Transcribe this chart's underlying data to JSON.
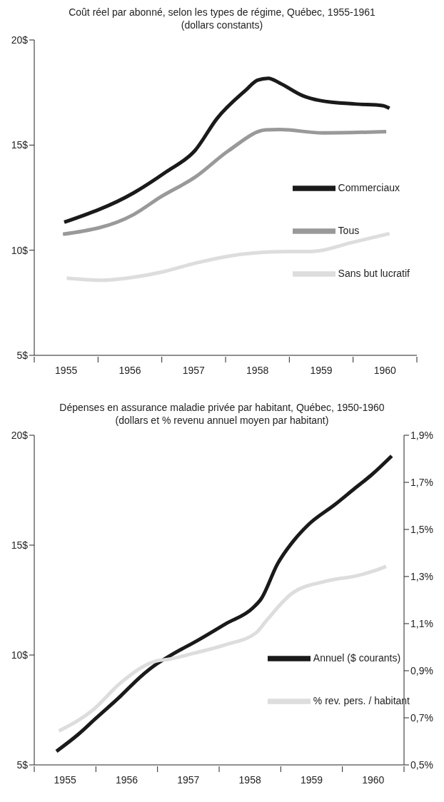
{
  "chart_data": [
    {
      "type": "line",
      "title": "Coût réel par abonné, selon les types de régime, Québec, 1955-1961",
      "subtitle": "(dollars constants)",
      "legend": "bottom right",
      "grid": false,
      "line_style": "solid",
      "marker": "none",
      "xlim": [
        1954.5,
        1960.5
      ],
      "xticks": [
        {
          "value": 1954.5,
          "label": null
        },
        {
          "value": 1955,
          "label": "1955"
        },
        {
          "value": 1955.5,
          "label": null
        },
        {
          "value": 1956,
          "label": "1956"
        },
        {
          "value": 1956.5,
          "label": null
        },
        {
          "value": 1957,
          "label": "1957"
        },
        {
          "value": 1957.5,
          "label": null
        },
        {
          "value": 1958,
          "label": "1958"
        },
        {
          "value": 1958.5,
          "label": null
        },
        {
          "value": 1959,
          "label": "1959"
        },
        {
          "value": 1959.5,
          "label": null
        },
        {
          "value": 1960,
          "label": "1960"
        },
        {
          "value": 1960.5,
          "label": null
        }
      ],
      "ylim": [
        5,
        20
      ],
      "yticks": [
        {
          "value": 5,
          "label": "5$"
        },
        {
          "value": 10,
          "label": "10$"
        },
        {
          "value": 15,
          "label": "15$"
        },
        {
          "value": 20,
          "label": "20$"
        }
      ],
      "series": [
        {
          "name": "Commerciaux",
          "color": "#1a1a1a",
          "x": [
            1954.97,
            1956.06,
            1956.57,
            1957.02,
            1957.37,
            1957.82,
            1958.0,
            1958.17,
            1958.35,
            1958.71,
            1958.98,
            1959.55,
            1959.96,
            1960.07
          ],
          "values": [
            11.33,
            12.73,
            13.73,
            14.74,
            16.28,
            17.62,
            18.09,
            18.18,
            17.95,
            17.35,
            17.12,
            16.95,
            16.88,
            16.75
          ]
        },
        {
          "name": "Tous",
          "color": "#999999",
          "x": [
            1954.95,
            1956.06,
            1956.48,
            1957.02,
            1957.55,
            1958.13,
            1958.35,
            1959.02,
            1960.02
          ],
          "values": [
            10.76,
            11.7,
            12.53,
            13.47,
            14.74,
            15.72,
            15.74,
            15.58,
            15.64
          ]
        },
        {
          "name": "Sans but lucratif",
          "color": "#dddddd",
          "x": [
            1955.01,
            1955.55,
            1956.04,
            1956.53,
            1957.02,
            1957.55,
            1958.22,
            1958.89,
            1959.47,
            1960.07
          ],
          "values": [
            8.67,
            8.57,
            8.71,
            8.98,
            9.38,
            9.72,
            9.92,
            9.95,
            10.36,
            10.79
          ]
        }
      ]
    },
    {
      "type": "line",
      "title": "Dépenses en assurance maladie privée par habitant, Québec, 1950-1960",
      "subtitle": "(dollars et % revenu annuel moyen par habitant)",
      "legend": "bottom right",
      "grid": false,
      "line_style": "solid",
      "marker": "none",
      "xlim": [
        1954.5,
        1960.5
      ],
      "xticks": [
        {
          "value": 1954.5,
          "label": null
        },
        {
          "value": 1955,
          "label": "1955"
        },
        {
          "value": 1955.5,
          "label": null
        },
        {
          "value": 1956,
          "label": "1956"
        },
        {
          "value": 1956.5,
          "label": null
        },
        {
          "value": 1957,
          "label": "1957"
        },
        {
          "value": 1957.5,
          "label": null
        },
        {
          "value": 1958,
          "label": "1958"
        },
        {
          "value": 1958.5,
          "label": null
        },
        {
          "value": 1959,
          "label": "1959"
        },
        {
          "value": 1959.5,
          "label": null
        },
        {
          "value": 1960,
          "label": "1960"
        },
        {
          "value": 1960.5,
          "label": null
        }
      ],
      "ylim": [
        5,
        20
      ],
      "yticks": [
        {
          "value": 5,
          "label": "5$"
        },
        {
          "value": 10,
          "label": "10$"
        },
        {
          "value": 15,
          "label": "15$"
        },
        {
          "value": 20,
          "label": "20$"
        }
      ],
      "y2lim": [
        0.5,
        1.9
      ],
      "y2ticks": [
        {
          "value": 0.5,
          "label": "0,5%"
        },
        {
          "value": 0.7,
          "label": "0,7%"
        },
        {
          "value": 0.9,
          "label": "0,9%"
        },
        {
          "value": 1.1,
          "label": "1,1%"
        },
        {
          "value": 1.3,
          "label": "1,3%"
        },
        {
          "value": 1.5,
          "label": "1,5%"
        },
        {
          "value": 1.7,
          "label": "1,7%"
        },
        {
          "value": 1.9,
          "label": "1,9%"
        }
      ],
      "series": [
        {
          "name": "Annuel ($ courants)",
          "color": "#1a1a1a",
          "x": [
            1954.86,
            1955.21,
            1955.5,
            1955.9,
            1956.22,
            1956.49,
            1956.71,
            1957.16,
            1957.6,
            1958.05,
            1958.18,
            1958.45,
            1958.72,
            1958.94,
            1959.38,
            1959.7,
            1959.97,
            1960.3
          ],
          "values": [
            5.62,
            6.38,
            7.12,
            8.13,
            9.0,
            9.6,
            9.98,
            10.68,
            11.41,
            12.15,
            12.55,
            14.16,
            15.24,
            15.91,
            16.85,
            17.58,
            18.19,
            19.06
          ]
        },
        {
          "name": "% rev. pers. / habitant",
          "color": "#dddddd",
          "axis": "y2",
          "x": [
            1954.9,
            1955.46,
            1955.9,
            1956.49,
            1956.67,
            1957.07,
            1957.61,
            1958.1,
            1958.28,
            1958.69,
            1959.23,
            1959.76,
            1960.01,
            1960.21
          ],
          "values": [
            0.644,
            0.735,
            0.848,
            0.942,
            0.948,
            0.973,
            1.011,
            1.061,
            1.117,
            1.23,
            1.28,
            1.305,
            1.324,
            1.343
          ]
        }
      ]
    }
  ]
}
